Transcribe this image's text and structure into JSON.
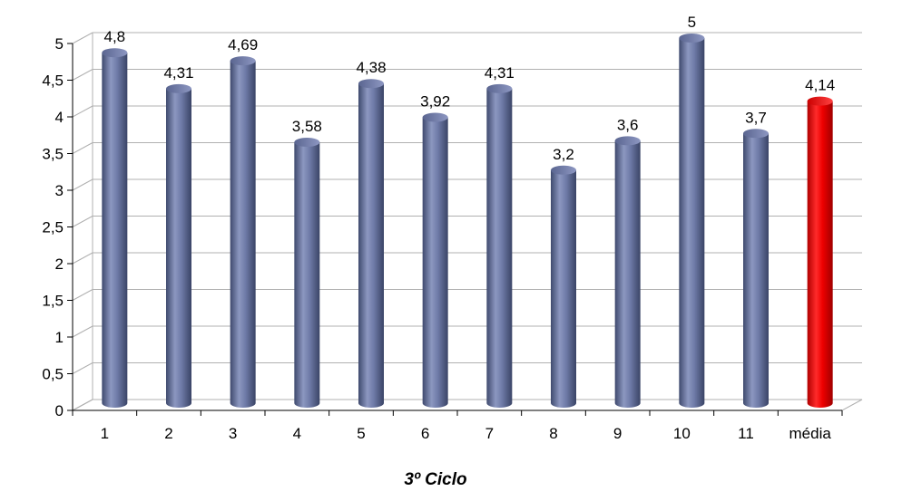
{
  "chart_data": {
    "type": "bar",
    "xlabel": "3º Ciclo",
    "ylabel": "",
    "ylim": [
      0,
      5
    ],
    "yticks": [
      "0",
      "0,5",
      "1",
      "1,5",
      "2",
      "2,5",
      "3",
      "3,5",
      "4",
      "4,5",
      "5"
    ],
    "categories": [
      "1",
      "2",
      "3",
      "4",
      "5",
      "6",
      "7",
      "8",
      "9",
      "10",
      "11",
      "média"
    ],
    "values": [
      4.8,
      4.31,
      4.69,
      3.58,
      4.38,
      3.92,
      4.31,
      3.2,
      3.6,
      5,
      3.7,
      4.14
    ],
    "data_labels": [
      "4,8",
      "4,31",
      "4,69",
      "3,58",
      "4,38",
      "3,92",
      "4,31",
      "3,2",
      "3,6",
      "5",
      "3,7",
      "4,14"
    ],
    "grid": true,
    "three_d": true,
    "bar_shape": "cylinder",
    "legend": "none",
    "colors": {
      "bar": "#6b77a3",
      "highlight": "#ff0000",
      "grid": "#b0b0b0"
    },
    "highlight_category": "média"
  }
}
